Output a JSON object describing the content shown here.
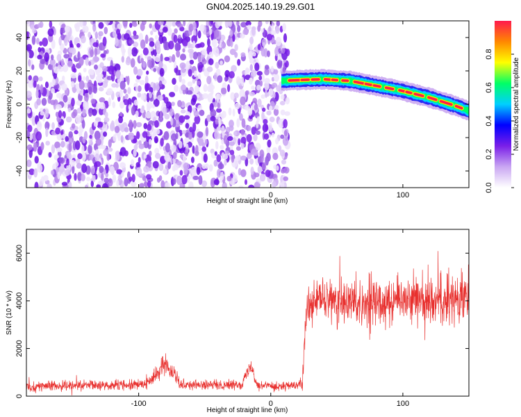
{
  "title": "GN04.2025.140.19.29.G01",
  "chart_data": [
    {
      "type": "heatmap",
      "xlabel": "Height of straight line (km)",
      "ylabel": "Frequency (Hz)",
      "xlim": [
        -185,
        150
      ],
      "ylim": [
        -50,
        50
      ],
      "xticks": [
        -100,
        0,
        100
      ],
      "yticks": [
        -40,
        -20,
        0,
        20,
        40
      ],
      "colorbar": {
        "label": "Normalized spectral amplitude",
        "range": [
          0,
          1
        ],
        "ticks": [
          "0.0",
          "0.2",
          "0.4",
          "0.6",
          "0.8"
        ],
        "colors": [
          "#ffffff",
          "#c9a6f2",
          "#7a1fe8",
          "#0000ff",
          "#00cfff",
          "#00ff66",
          "#ffff00",
          "#ff8800",
          "#ff1a4d"
        ]
      },
      "noise_region_x": [
        -185,
        13
      ],
      "ridge": {
        "x": [
          8,
          20,
          40,
          60,
          80,
          100,
          120,
          140,
          150
        ],
        "freq": [
          14,
          14.5,
          15,
          14,
          11,
          8,
          4,
          -1,
          -4
        ]
      }
    },
    {
      "type": "line",
      "xlabel": "Height of straight line (km)",
      "ylabel": "SNR (10 * v/v)",
      "xlim": [
        -185,
        150
      ],
      "ylim": [
        0,
        7000
      ],
      "xticks": [
        -100,
        0,
        100
      ],
      "yticks": [
        0,
        2000,
        4000,
        6000
      ],
      "color": "#e8302e",
      "envelope": {
        "x": [
          -185,
          -95,
          -88,
          -80,
          -72,
          -68,
          -50,
          -22,
          -15,
          -10,
          10,
          20,
          24,
          27,
          35,
          60,
          100,
          150
        ],
        "mean": [
          400,
          500,
          800,
          1400,
          900,
          500,
          450,
          500,
          1300,
          450,
          420,
          430,
          600,
          3600,
          4000,
          3900,
          4100,
          4100
        ],
        "spread": [
          300,
          320,
          450,
          600,
          450,
          320,
          300,
          300,
          400,
          300,
          280,
          280,
          500,
          1100,
          1400,
          1500,
          1600,
          1600
        ]
      }
    }
  ]
}
